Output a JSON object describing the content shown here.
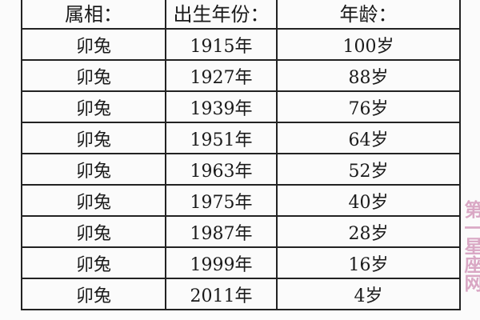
{
  "headers": [
    "属相：",
    "出生年份：",
    "年龄："
  ],
  "rows": [
    [
      "卯兔",
      "1915年",
      "100岁"
    ],
    [
      "卯兔",
      "1927年",
      "88岁"
    ],
    [
      "卯兔",
      "1939年",
      "76岁"
    ],
    [
      "卯兔",
      "1951年",
      "64岁"
    ],
    [
      "卯兔",
      "1963年",
      "52岁"
    ],
    [
      "卯兔",
      "1975年",
      "40岁"
    ],
    [
      "卯兔",
      "1987年",
      "28岁"
    ],
    [
      "卯兔",
      "1999年",
      "16岁"
    ],
    [
      "卯兔",
      "2011年",
      "4岁"
    ]
  ],
  "watermark": "第一星座网"
}
